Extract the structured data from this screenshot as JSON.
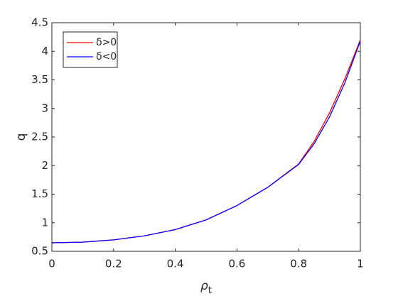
{
  "chart_data": {
    "type": "line",
    "xlabel": [
      "ρ",
      "t"
    ],
    "ylabel": "q",
    "x": [
      0,
      0.1,
      0.2,
      0.3,
      0.4,
      0.5,
      0.6,
      0.7,
      0.8,
      0.85,
      0.9,
      0.95,
      1
    ],
    "series": [
      {
        "name": "δ>0",
        "color": "#ff0000",
        "values": [
          0.65,
          0.66,
          0.7,
          0.77,
          0.88,
          1.05,
          1.3,
          1.62,
          2.03,
          2.42,
          2.92,
          3.52,
          4.2
        ]
      },
      {
        "name": "δ<0",
        "color": "#0000ff",
        "values": [
          0.65,
          0.66,
          0.7,
          0.77,
          0.88,
          1.05,
          1.3,
          1.62,
          2.02,
          2.38,
          2.85,
          3.45,
          4.18
        ]
      }
    ],
    "xlim": [
      0,
      1
    ],
    "xticks": [
      0,
      0.2,
      0.4,
      0.6,
      0.8,
      1
    ],
    "ylim": [
      0.5,
      4.5
    ],
    "yticks": [
      0.5,
      1,
      1.5,
      2,
      2.5,
      3,
      3.5,
      4,
      4.5
    ],
    "grid": false,
    "legend": "northwest"
  }
}
